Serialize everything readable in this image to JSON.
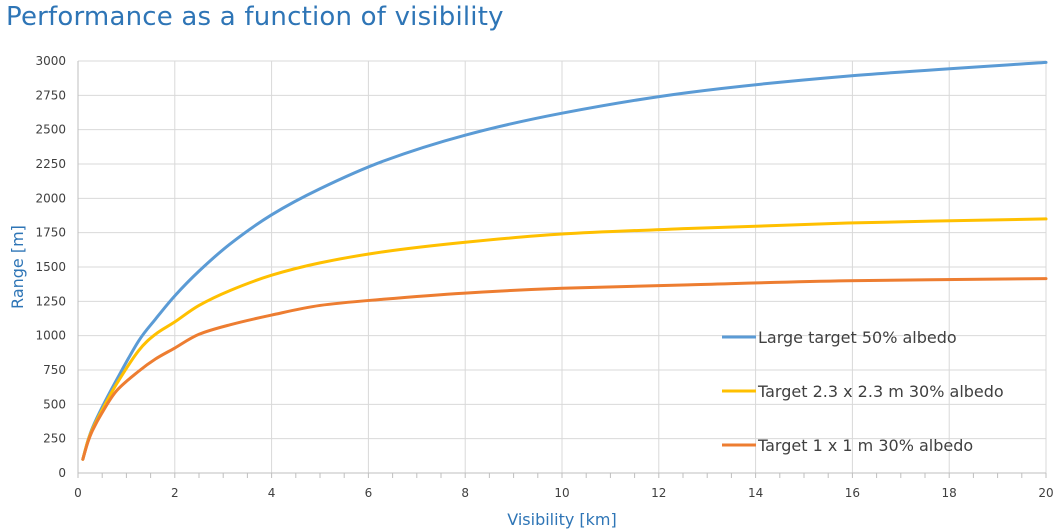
{
  "chart_data": {
    "type": "line",
    "title": "Performance as a function of visibility",
    "xlabel": "Visibility [km]",
    "ylabel": "Range [m]",
    "xlim": [
      0,
      20
    ],
    "ylim": [
      0,
      3000
    ],
    "x_ticks": [
      0,
      2,
      4,
      6,
      8,
      10,
      12,
      14,
      16,
      18,
      20
    ],
    "y_ticks": [
      0,
      250,
      500,
      750,
      1000,
      1250,
      1500,
      1750,
      2000,
      2250,
      2500,
      2750,
      3000
    ],
    "grid": true,
    "legend_position": "right-center",
    "series": [
      {
        "name": "Large target 50% albedo",
        "color": "#5b9bd5",
        "x": [
          0.1,
          0.2,
          0.3,
          0.5,
          0.8,
          1.25,
          1.6,
          2.0,
          2.5,
          3.15,
          4.0,
          5.0,
          6.3,
          8.0,
          10.0,
          12.6,
          15.9,
          20.0
        ],
        "y": [
          100,
          230,
          330,
          480,
          680,
          960,
          1120,
          1290,
          1470,
          1670,
          1880,
          2070,
          2270,
          2460,
          2620,
          2770,
          2890,
          2990
        ]
      },
      {
        "name": "Target 2.3 x 2.3 m 30% albedo",
        "color": "#ffc000",
        "x": [
          0.1,
          0.2,
          0.3,
          0.5,
          0.8,
          1.25,
          1.6,
          2.0,
          2.5,
          3.15,
          4.0,
          5.0,
          6.3,
          8.0,
          10.0,
          12.6,
          15.9,
          20.0
        ],
        "y": [
          100,
          230,
          320,
          460,
          650,
          890,
          1010,
          1100,
          1220,
          1330,
          1440,
          1530,
          1610,
          1680,
          1740,
          1780,
          1820,
          1850
        ]
      },
      {
        "name": "Target 1 x 1 m 30% albedo",
        "color": "#ed7d31",
        "x": [
          0.1,
          0.2,
          0.3,
          0.5,
          0.8,
          1.25,
          1.6,
          2.0,
          2.5,
          3.15,
          4.0,
          5.0,
          6.3,
          8.0,
          10.0,
          12.6,
          15.9,
          20.0
        ],
        "y": [
          100,
          220,
          310,
          440,
          600,
          740,
          830,
          910,
          1010,
          1080,
          1150,
          1220,
          1265,
          1310,
          1345,
          1370,
          1400,
          1415
        ]
      }
    ]
  }
}
